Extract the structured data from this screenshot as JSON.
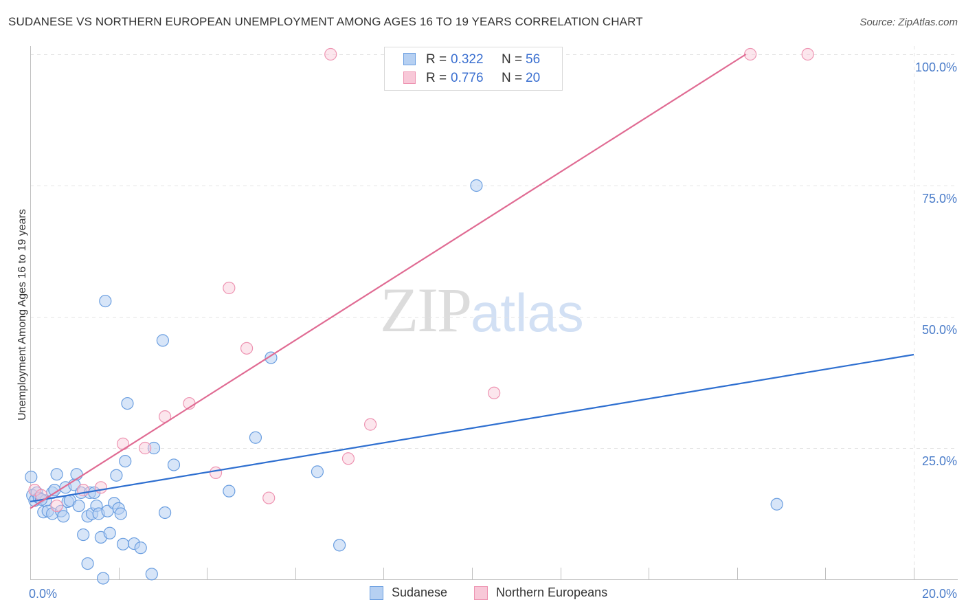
{
  "header": {
    "title": "SUDANESE VS NORTHERN EUROPEAN UNEMPLOYMENT AMONG AGES 16 TO 19 YEARS CORRELATION CHART",
    "source": "Source: ZipAtlas.com"
  },
  "watermark": {
    "zip": "ZIP",
    "atlas": "atlas"
  },
  "legend_top": {
    "rows": [
      {
        "r_label": "R = ",
        "r_value": "0.322",
        "n_label": "N = ",
        "n_value": "56"
      },
      {
        "r_label": "R = ",
        "r_value": "0.776",
        "n_label": "N = ",
        "n_value": "20"
      }
    ]
  },
  "colors": {
    "sudanese_fill": "#b6d0f2",
    "sudanese_stroke": "#6a9ee0",
    "sudanese_line": "#2e6fd0",
    "northern_fill": "#f8c8d8",
    "northern_stroke": "#ee94b2",
    "northern_line": "#e06b93",
    "tick_text": "#4a7cc9",
    "grid": "#e3e3e3"
  },
  "chart_data": {
    "type": "scatter",
    "title": "SUDANESE VS NORTHERN EUROPEAN UNEMPLOYMENT AMONG AGES 16 TO 19 YEARS CORRELATION CHART",
    "xlabel": "",
    "ylabel": "Unemployment Among Ages 16 to 19 years",
    "xlim": [
      0,
      20
    ],
    "ylim": [
      0,
      102
    ],
    "x_tick_labels": [
      {
        "value": 0,
        "label": "0.0%"
      },
      {
        "value": 20,
        "label": "20.0%"
      }
    ],
    "y_tick_labels": [
      {
        "value": 25,
        "label": "25.0%"
      },
      {
        "value": 50,
        "label": "50.0%"
      },
      {
        "value": 75,
        "label": "75.0%"
      },
      {
        "value": 100,
        "label": "100.0%"
      }
    ],
    "grid": true,
    "legend_position": "bottom",
    "series": [
      {
        "name": "Sudanese",
        "r": 0.322,
        "n": 56,
        "trendline": {
          "x": [
            0,
            20
          ],
          "y": [
            14.8,
            42.8
          ]
        },
        "points": [
          [
            0.02,
            19.5
          ],
          [
            0.05,
            16.0
          ],
          [
            0.1,
            15.0
          ],
          [
            0.15,
            16.5
          ],
          [
            0.2,
            15.5
          ],
          [
            0.3,
            12.8
          ],
          [
            0.35,
            15.0
          ],
          [
            0.4,
            13.0
          ],
          [
            0.5,
            16.5
          ],
          [
            0.5,
            12.5
          ],
          [
            0.55,
            17.0
          ],
          [
            0.6,
            20.0
          ],
          [
            0.7,
            13.0
          ],
          [
            0.75,
            12.0
          ],
          [
            0.8,
            17.5
          ],
          [
            0.85,
            14.8
          ],
          [
            0.9,
            15.0
          ],
          [
            1.0,
            18.0
          ],
          [
            1.05,
            20.0
          ],
          [
            1.1,
            14.0
          ],
          [
            1.15,
            16.5
          ],
          [
            1.2,
            8.5
          ],
          [
            1.3,
            12.0
          ],
          [
            1.3,
            3.0
          ],
          [
            1.35,
            16.5
          ],
          [
            1.4,
            12.5
          ],
          [
            1.45,
            16.5
          ],
          [
            1.5,
            14.0
          ],
          [
            1.55,
            12.5
          ],
          [
            1.6,
            8.0
          ],
          [
            1.65,
            0.2
          ],
          [
            1.7,
            53.0
          ],
          [
            1.75,
            13.0
          ],
          [
            1.8,
            8.8
          ],
          [
            1.9,
            14.5
          ],
          [
            1.95,
            19.8
          ],
          [
            2.0,
            13.5
          ],
          [
            2.05,
            12.5
          ],
          [
            2.1,
            6.7
          ],
          [
            2.15,
            22.5
          ],
          [
            2.2,
            33.5
          ],
          [
            2.35,
            6.8
          ],
          [
            2.5,
            6.0
          ],
          [
            2.75,
            1.0
          ],
          [
            2.8,
            25.0
          ],
          [
            3.0,
            45.5
          ],
          [
            3.05,
            12.7
          ],
          [
            3.25,
            21.8
          ],
          [
            4.5,
            16.8
          ],
          [
            5.1,
            27.0
          ],
          [
            5.45,
            42.2
          ],
          [
            6.5,
            20.5
          ],
          [
            7.0,
            6.5
          ],
          [
            10.1,
            75.0
          ],
          [
            16.9,
            14.3
          ],
          [
            0.25,
            15.2
          ]
        ]
      },
      {
        "name": "Northern Europeans",
        "r": 0.776,
        "n": 20,
        "trendline": {
          "x": [
            0,
            16.2
          ],
          "y": [
            13.5,
            100
          ]
        },
        "points": [
          [
            0.1,
            17.0
          ],
          [
            0.25,
            16.0
          ],
          [
            0.6,
            14.0
          ],
          [
            1.2,
            17.0
          ],
          [
            1.6,
            17.5
          ],
          [
            2.1,
            25.8
          ],
          [
            2.6,
            25.0
          ],
          [
            3.05,
            31.0
          ],
          [
            3.6,
            33.5
          ],
          [
            4.2,
            20.3
          ],
          [
            4.5,
            55.5
          ],
          [
            4.9,
            44.0
          ],
          [
            5.4,
            15.5
          ],
          [
            6.8,
            100.0
          ],
          [
            7.2,
            23.0
          ],
          [
            7.7,
            29.5
          ],
          [
            10.1,
            100.0
          ],
          [
            10.5,
            35.5
          ],
          [
            16.3,
            100.0
          ],
          [
            17.6,
            100.0
          ]
        ]
      }
    ]
  },
  "legend_bottom": {
    "items": [
      {
        "label": "Sudanese"
      },
      {
        "label": "Northern Europeans"
      }
    ]
  }
}
